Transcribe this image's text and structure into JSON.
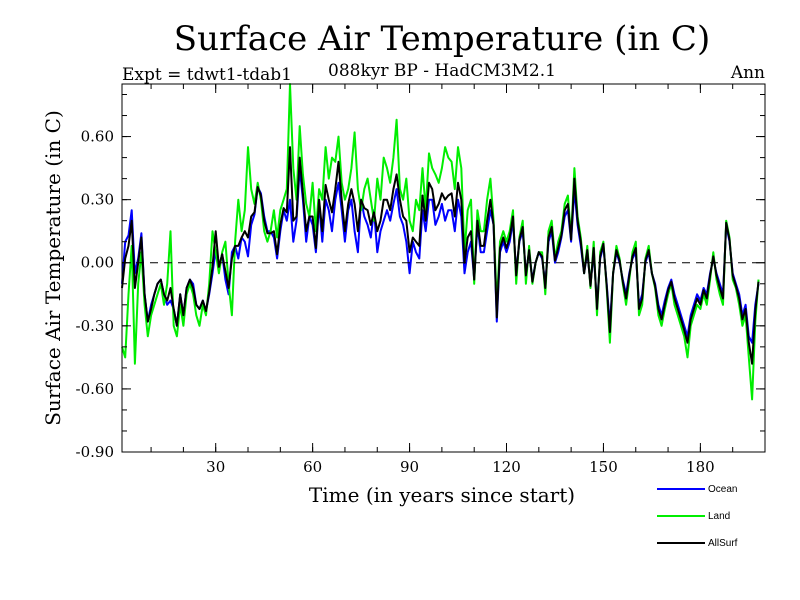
{
  "chart_data": {
    "type": "line",
    "title": "Surface Air Temperature (in C)",
    "subtitle": "088kyr BP - HadCM3M2.1",
    "left_label": "Expt = tdwt1-tdab1",
    "right_label": "Ann",
    "xlabel": "Time (in years since start)",
    "ylabel": "Surface Air Temperature (in C)",
    "xlim": [
      1,
      200
    ],
    "ylim": [
      -0.9,
      0.85
    ],
    "x_ticks": [
      30,
      60,
      90,
      120,
      150,
      180
    ],
    "y_ticks": [
      -0.9,
      -0.6,
      -0.3,
      0.0,
      0.3,
      0.6
    ],
    "y_tick_labels": [
      "-0.90",
      "-0.60",
      "-0.30",
      "0.00",
      "0.30",
      "0.60"
    ],
    "zero_line": true,
    "x_start": 1,
    "series": [
      {
        "name": "Ocean",
        "color": "#0000ff",
        "values": [
          -0.1,
          0.1,
          0.13,
          0.25,
          -0.05,
          0.02,
          0.14,
          -0.15,
          -0.28,
          -0.2,
          -0.15,
          -0.1,
          -0.08,
          -0.15,
          -0.2,
          -0.18,
          -0.22,
          -0.3,
          -0.15,
          -0.25,
          -0.12,
          -0.08,
          -0.1,
          -0.2,
          -0.22,
          -0.18,
          -0.23,
          -0.15,
          -0.05,
          0.06,
          -0.02,
          0.04,
          -0.08,
          -0.15,
          0.05,
          0.08,
          0.02,
          0.12,
          0.1,
          0.03,
          0.18,
          0.23,
          0.36,
          0.33,
          0.22,
          0.15,
          0.15,
          0.12,
          0.02,
          0.15,
          0.25,
          0.2,
          0.3,
          0.1,
          0.2,
          0.45,
          0.3,
          0.1,
          0.22,
          0.18,
          0.05,
          0.28,
          0.1,
          0.3,
          0.25,
          0.15,
          0.3,
          0.38,
          0.25,
          0.1,
          0.25,
          0.3,
          0.15,
          0.05,
          0.3,
          0.22,
          0.18,
          0.12,
          0.25,
          0.05,
          0.15,
          0.2,
          0.25,
          0.2,
          0.28,
          0.35,
          0.22,
          0.18,
          0.1,
          -0.05,
          0.1,
          0.05,
          0.02,
          0.25,
          0.15,
          0.3,
          0.3,
          0.18,
          0.22,
          0.28,
          0.2,
          0.25,
          0.25,
          0.15,
          0.3,
          0.22,
          -0.05,
          0.05,
          0.1,
          -0.08,
          0.18,
          0.05,
          0.05,
          0.15,
          0.25,
          0.18,
          -0.28,
          0.05,
          0.1,
          0.05,
          0.1,
          0.2,
          -0.05,
          0.1,
          0.15,
          -0.05,
          0.05,
          -0.08,
          0.0,
          0.05,
          0.02,
          -0.1,
          0.1,
          0.15,
          0.0,
          0.05,
          0.12,
          0.22,
          0.25,
          0.1,
          0.35,
          0.18,
          0.08,
          -0.05,
          0.05,
          -0.1,
          0.05,
          -0.2,
          0.02,
          0.08,
          -0.1,
          -0.3,
          -0.05,
          0.05,
          0.0,
          -0.08,
          -0.15,
          -0.05,
          0.02,
          0.05,
          -0.2,
          -0.15,
          0.0,
          0.05,
          -0.05,
          -0.1,
          -0.2,
          -0.25,
          -0.18,
          -0.12,
          -0.08,
          -0.15,
          -0.2,
          -0.25,
          -0.3,
          -0.35,
          -0.25,
          -0.2,
          -0.15,
          -0.18,
          -0.12,
          -0.15,
          -0.05,
          0.02,
          -0.05,
          -0.1,
          -0.15,
          0.18,
          0.1,
          -0.05,
          -0.1,
          -0.15,
          -0.25,
          -0.2,
          -0.35,
          -0.38,
          -0.2,
          -0.1
        ]
      },
      {
        "name": "Land",
        "color": "#00ee00",
        "values": [
          -0.4,
          -0.45,
          -0.15,
          0.08,
          -0.48,
          -0.1,
          0.05,
          -0.2,
          -0.35,
          -0.25,
          -0.2,
          -0.15,
          -0.1,
          -0.2,
          -0.1,
          0.15,
          -0.3,
          -0.35,
          -0.2,
          -0.3,
          -0.15,
          -0.1,
          -0.15,
          -0.25,
          -0.3,
          -0.2,
          -0.25,
          -0.1,
          0.15,
          0.05,
          -0.05,
          0.05,
          0.1,
          -0.1,
          -0.25,
          0.1,
          0.3,
          0.15,
          0.25,
          0.55,
          0.35,
          0.28,
          0.38,
          0.3,
          0.15,
          0.1,
          0.15,
          0.25,
          0.12,
          0.25,
          0.3,
          0.35,
          0.85,
          0.45,
          0.3,
          0.65,
          0.42,
          0.28,
          0.22,
          0.38,
          0.15,
          0.35,
          0.3,
          0.55,
          0.4,
          0.5,
          0.48,
          0.6,
          0.38,
          0.3,
          0.35,
          0.45,
          0.62,
          0.35,
          0.25,
          0.35,
          0.4,
          0.3,
          0.2,
          0.4,
          0.3,
          0.5,
          0.45,
          0.38,
          0.5,
          0.68,
          0.35,
          0.3,
          0.4,
          0.2,
          0.15,
          0.3,
          0.25,
          0.45,
          0.25,
          0.52,
          0.45,
          0.42,
          0.38,
          0.45,
          0.55,
          0.5,
          0.48,
          0.35,
          0.55,
          0.45,
          0.05,
          0.25,
          0.3,
          -0.1,
          0.25,
          0.15,
          0.15,
          0.3,
          0.4,
          0.2,
          -0.2,
          0.1,
          0.15,
          0.1,
          0.15,
          0.25,
          -0.1,
          0.12,
          0.2,
          -0.1,
          0.08,
          -0.1,
          0.0,
          0.05,
          0.05,
          -0.15,
          0.15,
          0.2,
          0.02,
          0.1,
          0.15,
          0.28,
          0.32,
          0.12,
          0.45,
          0.22,
          0.12,
          -0.05,
          0.08,
          -0.12,
          0.1,
          -0.25,
          0.05,
          0.1,
          -0.12,
          -0.38,
          -0.05,
          0.08,
          0.02,
          -0.1,
          -0.2,
          -0.08,
          0.05,
          0.1,
          -0.25,
          -0.2,
          0.02,
          0.08,
          -0.05,
          -0.12,
          -0.25,
          -0.3,
          -0.22,
          -0.15,
          -0.1,
          -0.2,
          -0.25,
          -0.3,
          -0.35,
          -0.45,
          -0.3,
          -0.25,
          -0.2,
          -0.22,
          -0.15,
          -0.2,
          -0.08,
          0.05,
          -0.08,
          -0.15,
          -0.2,
          0.2,
          0.12,
          -0.08,
          -0.12,
          -0.2,
          -0.3,
          -0.25,
          -0.45,
          -0.65,
          -0.28,
          -0.08
        ]
      },
      {
        "name": "AllSurf",
        "color": "#000000",
        "values": [
          -0.12,
          0.02,
          0.08,
          0.2,
          -0.12,
          0.0,
          0.12,
          -0.15,
          -0.28,
          -0.22,
          -0.15,
          -0.1,
          -0.08,
          -0.15,
          -0.18,
          -0.12,
          -0.22,
          -0.3,
          -0.15,
          -0.25,
          -0.12,
          -0.08,
          -0.12,
          -0.2,
          -0.22,
          -0.18,
          -0.23,
          -0.14,
          -0.02,
          0.15,
          -0.02,
          0.04,
          -0.04,
          -0.12,
          0.02,
          0.08,
          0.08,
          0.12,
          0.15,
          0.12,
          0.22,
          0.24,
          0.36,
          0.32,
          0.2,
          0.14,
          0.14,
          0.15,
          0.04,
          0.18,
          0.26,
          0.24,
          0.55,
          0.2,
          0.22,
          0.5,
          0.33,
          0.15,
          0.22,
          0.22,
          0.07,
          0.3,
          0.15,
          0.37,
          0.3,
          0.24,
          0.35,
          0.48,
          0.3,
          0.15,
          0.28,
          0.35,
          0.28,
          0.15,
          0.3,
          0.26,
          0.25,
          0.18,
          0.24,
          0.15,
          0.2,
          0.3,
          0.3,
          0.25,
          0.35,
          0.42,
          0.3,
          0.22,
          0.2,
          0.05,
          0.12,
          0.1,
          0.08,
          0.32,
          0.2,
          0.38,
          0.35,
          0.25,
          0.28,
          0.33,
          0.3,
          0.32,
          0.33,
          0.22,
          0.38,
          0.3,
          0.0,
          0.12,
          0.15,
          -0.08,
          0.2,
          0.08,
          0.08,
          0.2,
          0.3,
          0.18,
          -0.26,
          0.07,
          0.12,
          0.07,
          0.12,
          0.22,
          -0.06,
          0.11,
          0.17,
          -0.06,
          0.06,
          -0.09,
          0.0,
          0.05,
          0.03,
          -0.12,
          0.12,
          0.17,
          0.01,
          0.07,
          0.13,
          0.25,
          0.28,
          0.11,
          0.4,
          0.2,
          0.1,
          -0.05,
          0.06,
          -0.11,
          0.07,
          -0.22,
          0.03,
          0.09,
          -0.11,
          -0.33,
          -0.05,
          0.06,
          0.01,
          -0.09,
          -0.17,
          -0.06,
          0.03,
          0.07,
          -0.22,
          -0.17,
          0.01,
          0.06,
          -0.05,
          -0.11,
          -0.22,
          -0.27,
          -0.2,
          -0.13,
          -0.09,
          -0.17,
          -0.22,
          -0.27,
          -0.32,
          -0.38,
          -0.27,
          -0.22,
          -0.17,
          -0.2,
          -0.13,
          -0.17,
          -0.06,
          0.03,
          -0.06,
          -0.12,
          -0.17,
          0.19,
          0.11,
          -0.06,
          -0.11,
          -0.17,
          -0.27,
          -0.22,
          -0.38,
          -0.48,
          -0.23,
          -0.09
        ]
      }
    ]
  }
}
